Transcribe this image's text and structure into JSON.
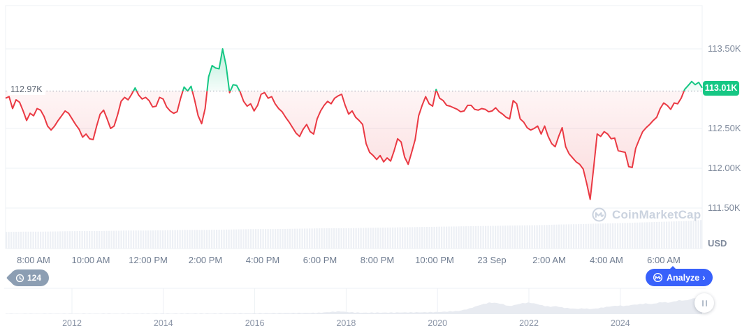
{
  "ui": {
    "history_badge": {
      "count": "124"
    },
    "analyze_button": {
      "label": "Analyze",
      "chevron": "›"
    },
    "watermark": {
      "text": "CoinMarketCap"
    }
  },
  "chart_data": {
    "type": "area",
    "subtype": "baseline-line-with-volume-and-navigator",
    "title": "",
    "grid": true,
    "colors": {
      "up": "#16c784",
      "down": "#ea3943",
      "accent_blue": "#3861fb",
      "volume": "#edf0f5",
      "navigator_fill": "#e8ebf1"
    },
    "baseline": {
      "value": 112.97,
      "label": "112.97K"
    },
    "last_price": {
      "value": 113.01,
      "label": "113.01K"
    },
    "y_axis": {
      "unit": "USD",
      "side": "right",
      "ylim": [
        111.4,
        114.0
      ],
      "ticks": [
        {
          "label": "113.50K",
          "value": 113.5
        },
        {
          "label": "112.50K",
          "value": 112.5
        },
        {
          "label": "112.00K",
          "value": 112.0
        },
        {
          "label": "111.50K",
          "value": 111.5
        }
      ]
    },
    "x_ticks": [
      "8:00 AM",
      "10:00 AM",
      "12:00 PM",
      "2:00 PM",
      "4:00 PM",
      "6:00 PM",
      "8:00 PM",
      "10:00 PM",
      "23 Sep",
      "2:00 AM",
      "4:00 AM",
      "6:00 AM"
    ],
    "series": [
      {
        "name": "price",
        "values": [
          112.88,
          112.9,
          112.75,
          112.86,
          112.83,
          112.72,
          112.6,
          112.69,
          112.66,
          112.75,
          112.73,
          112.65,
          112.53,
          112.48,
          112.53,
          112.6,
          112.66,
          112.72,
          112.69,
          112.62,
          112.55,
          112.49,
          112.39,
          112.43,
          112.37,
          112.36,
          112.53,
          112.68,
          112.73,
          112.62,
          112.5,
          112.53,
          112.67,
          112.84,
          112.89,
          112.86,
          112.93,
          113.01,
          112.92,
          112.87,
          112.89,
          112.85,
          112.77,
          112.78,
          112.89,
          112.87,
          112.77,
          112.72,
          112.69,
          112.71,
          112.88,
          113.02,
          112.97,
          113.03,
          112.86,
          112.66,
          112.56,
          112.75,
          113.15,
          113.29,
          113.26,
          113.25,
          113.5,
          113.29,
          112.95,
          113.05,
          113.04,
          112.96,
          112.84,
          112.78,
          112.81,
          112.72,
          112.79,
          112.93,
          112.95,
          112.88,
          112.9,
          112.81,
          112.75,
          112.71,
          112.64,
          112.58,
          112.51,
          112.44,
          112.4,
          112.49,
          112.55,
          112.46,
          112.43,
          112.62,
          112.72,
          112.79,
          112.84,
          112.81,
          112.88,
          112.91,
          112.93,
          112.79,
          112.68,
          112.72,
          112.64,
          112.6,
          112.55,
          112.31,
          112.2,
          112.16,
          112.11,
          112.16,
          112.08,
          112.13,
          112.09,
          112.22,
          112.37,
          112.33,
          112.14,
          112.05,
          112.2,
          112.36,
          112.66,
          112.79,
          112.9,
          112.81,
          112.78,
          112.99,
          112.88,
          112.85,
          112.79,
          112.78,
          112.76,
          112.74,
          112.71,
          112.72,
          112.79,
          112.79,
          112.74,
          112.73,
          112.75,
          112.74,
          112.71,
          112.72,
          112.76,
          112.71,
          112.68,
          112.64,
          112.62,
          112.85,
          112.81,
          112.62,
          112.58,
          112.51,
          112.48,
          112.5,
          112.53,
          112.43,
          112.53,
          112.4,
          112.31,
          112.27,
          112.4,
          112.51,
          112.27,
          112.18,
          112.13,
          112.08,
          112.05,
          111.99,
          111.81,
          111.61,
          112.01,
          112.43,
          112.4,
          112.46,
          112.43,
          112.37,
          112.38,
          112.22,
          112.21,
          112.2,
          112.02,
          112.01,
          112.25,
          112.36,
          112.46,
          112.51,
          112.55,
          112.6,
          112.64,
          112.75,
          112.82,
          112.79,
          112.74,
          112.82,
          112.81,
          112.88,
          112.99,
          113.04,
          113.09,
          113.05,
          113.08,
          113.01
        ]
      }
    ],
    "volume_profile": [
      0.58,
      0.59,
      0.59,
      0.6,
      0.61,
      0.61,
      0.62,
      0.63,
      0.63,
      0.64,
      0.65,
      0.65,
      0.66,
      0.67,
      0.68,
      0.68,
      0.69,
      0.7,
      0.71,
      0.71,
      0.72,
      0.73,
      0.74,
      0.75,
      0.76,
      0.77,
      0.78,
      0.79,
      0.8,
      0.81,
      0.82,
      0.84,
      0.85,
      0.87,
      0.88,
      0.9,
      0.92,
      0.94,
      0.96,
      1.0
    ],
    "navigator": {
      "years": [
        "2012",
        "2014",
        "2016",
        "2018",
        "2020",
        "2022",
        "2024"
      ],
      "profile": [
        [
          0.0,
          0.015
        ],
        [
          0.1,
          0.018
        ],
        [
          0.2,
          0.022
        ],
        [
          0.28,
          0.028
        ],
        [
          0.35,
          0.035
        ],
        [
          0.4,
          0.045
        ],
        [
          0.45,
          0.06
        ],
        [
          0.465,
          0.095
        ],
        [
          0.48,
          0.125
        ],
        [
          0.495,
          0.085
        ],
        [
          0.51,
          0.065
        ],
        [
          0.54,
          0.068
        ],
        [
          0.57,
          0.075
        ],
        [
          0.6,
          0.085
        ],
        [
          0.625,
          0.1
        ],
        [
          0.65,
          0.14
        ],
        [
          0.665,
          0.24
        ],
        [
          0.68,
          0.4
        ],
        [
          0.695,
          0.52
        ],
        [
          0.705,
          0.5
        ],
        [
          0.715,
          0.44
        ],
        [
          0.722,
          0.36
        ],
        [
          0.73,
          0.4
        ],
        [
          0.74,
          0.48
        ],
        [
          0.752,
          0.52
        ],
        [
          0.762,
          0.46
        ],
        [
          0.772,
          0.38
        ],
        [
          0.782,
          0.33
        ],
        [
          0.79,
          0.36
        ],
        [
          0.8,
          0.29
        ],
        [
          0.81,
          0.26
        ],
        [
          0.82,
          0.235
        ],
        [
          0.83,
          0.26
        ],
        [
          0.84,
          0.225
        ],
        [
          0.85,
          0.26
        ],
        [
          0.86,
          0.31
        ],
        [
          0.87,
          0.355
        ],
        [
          0.88,
          0.385
        ],
        [
          0.89,
          0.365
        ],
        [
          0.9,
          0.42
        ],
        [
          0.91,
          0.445
        ],
        [
          0.92,
          0.48
        ],
        [
          0.928,
          0.445
        ],
        [
          0.936,
          0.505
        ],
        [
          0.944,
          0.545
        ],
        [
          0.952,
          0.51
        ],
        [
          0.96,
          0.57
        ],
        [
          0.968,
          0.625
        ],
        [
          0.976,
          0.6
        ],
        [
          0.984,
          0.68
        ],
        [
          0.99,
          0.72
        ],
        [
          0.994,
          0.7
        ],
        [
          1.0,
          0.93
        ]
      ]
    }
  }
}
